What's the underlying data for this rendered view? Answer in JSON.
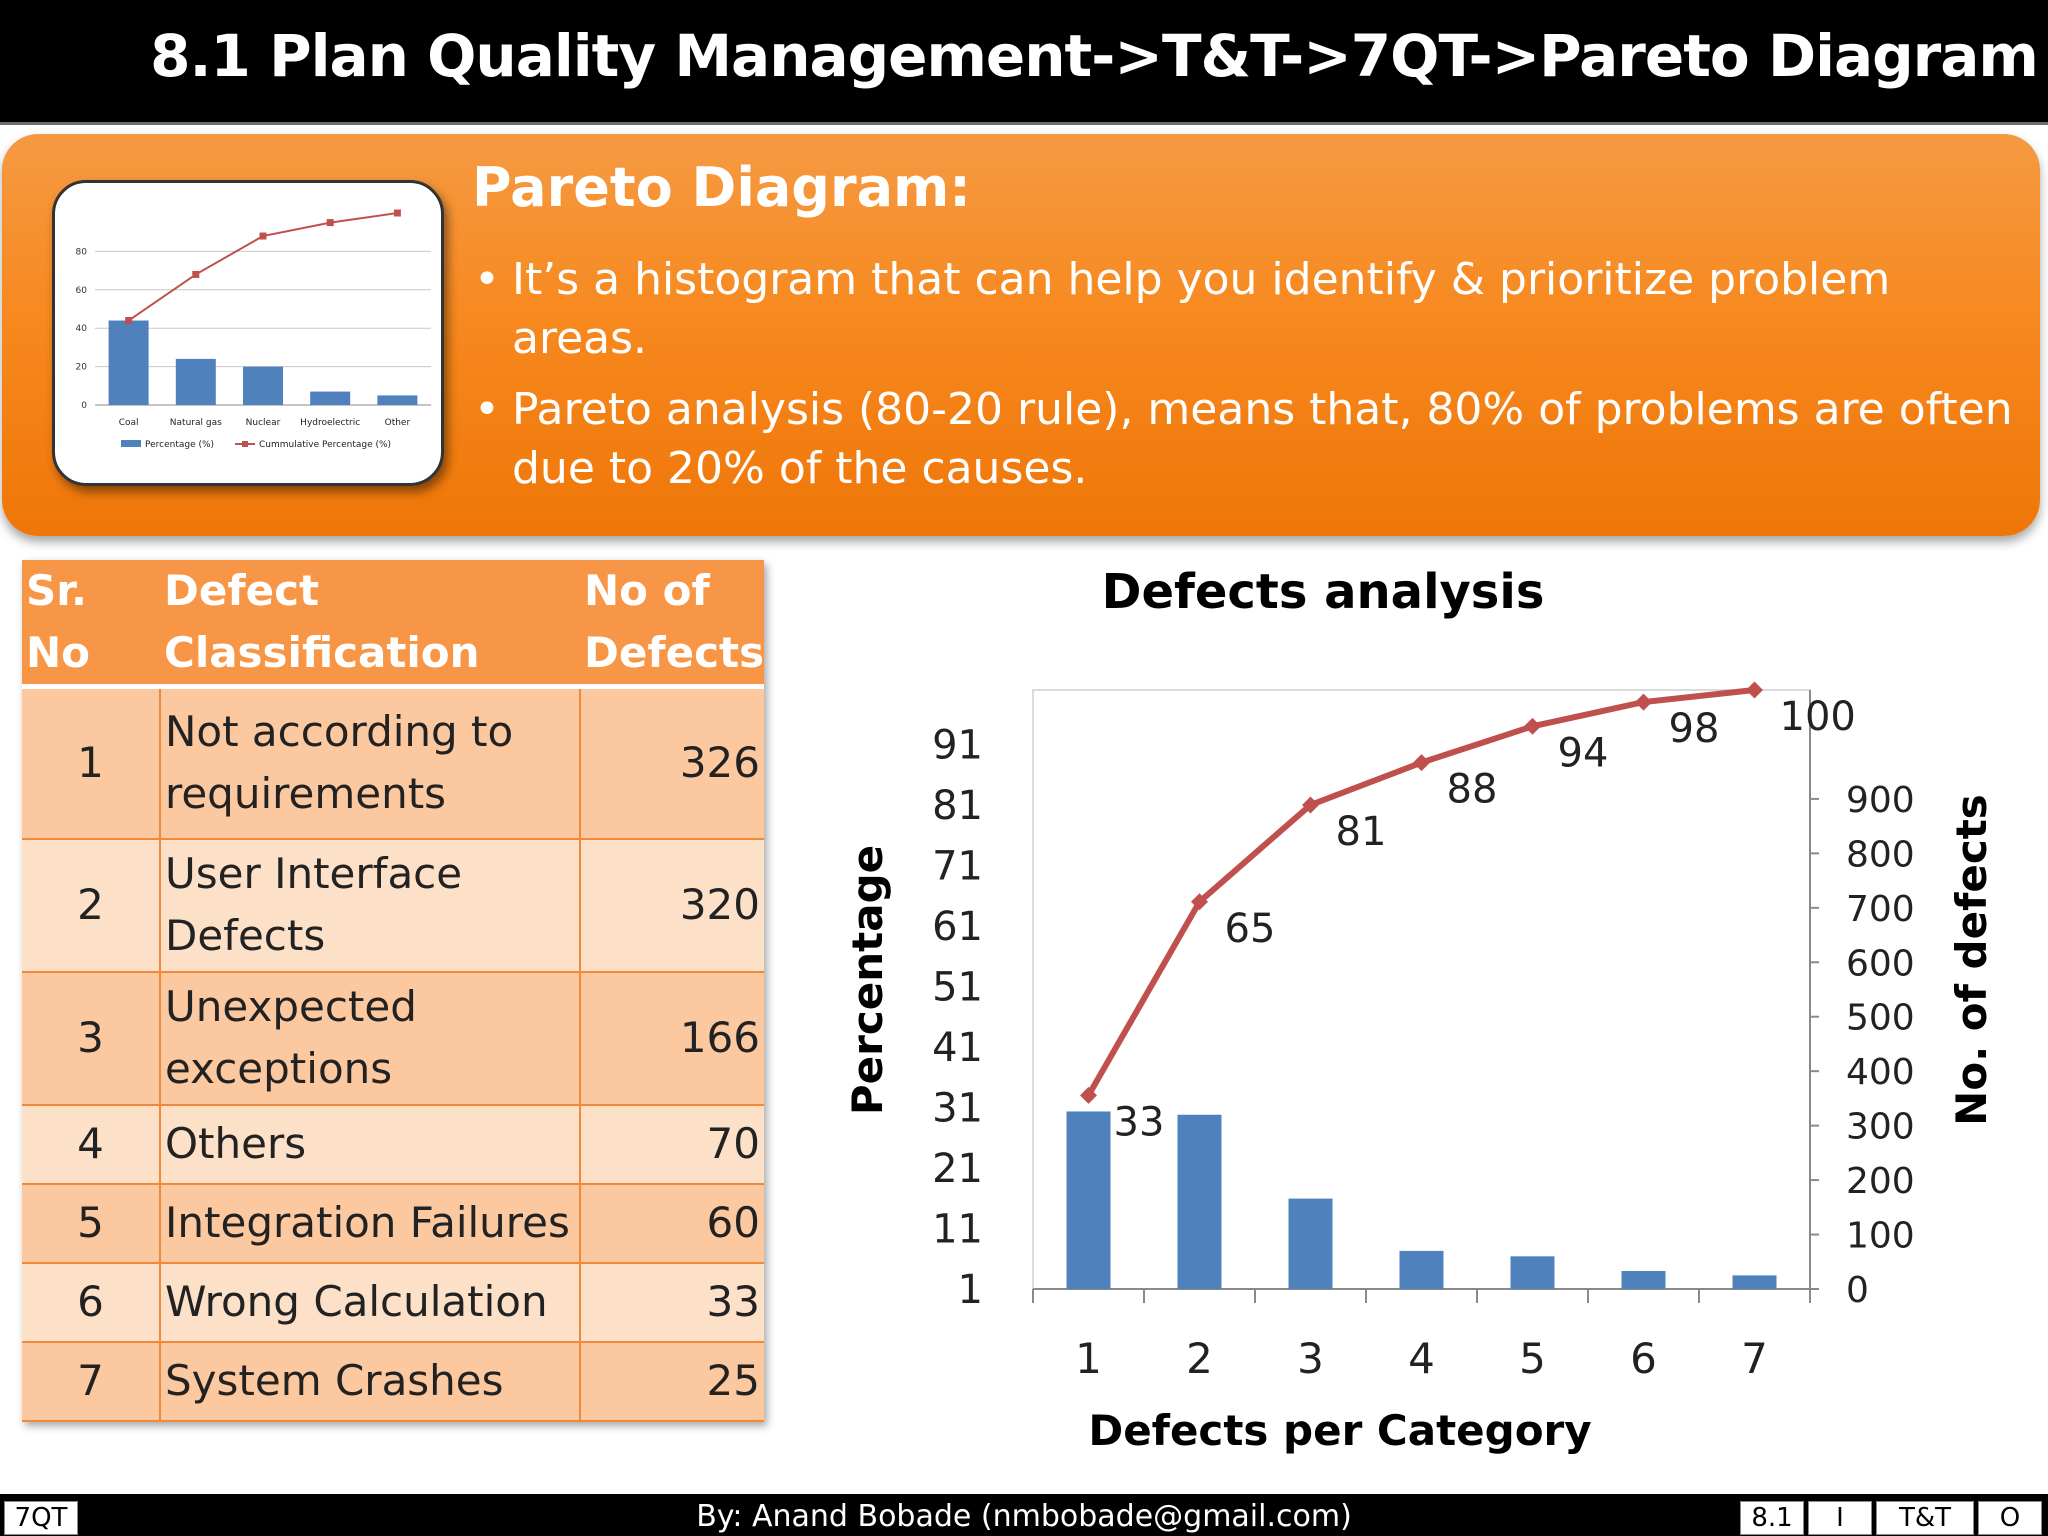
{
  "title": "8.1 Plan Quality Management->T&T->7QT->Pareto Diagram",
  "banner": {
    "heading": "Pareto Diagram:",
    "bullets": [
      "It’s a histogram that can help you identify & prioritize problem areas.",
      "Pareto analysis (80-20 rule), means that, 80% of problems are often due to 20% of the causes."
    ],
    "bullet_glyph": "•"
  },
  "table": {
    "headers": [
      "Sr. No",
      "Defect Classification",
      "No of Defects"
    ],
    "rows": [
      {
        "sr": "1",
        "classification": "Not according to requirements",
        "count": "326"
      },
      {
        "sr": "2",
        "classification": "User Interface Defects",
        "count": "320"
      },
      {
        "sr": "3",
        "classification": "Unexpected exceptions",
        "count": "166"
      },
      {
        "sr": "4",
        "classification": "Others",
        "count": "70"
      },
      {
        "sr": "5",
        "classification": "Integration Failures",
        "count": "60"
      },
      {
        "sr": "6",
        "classification": "Wrong Calculation",
        "count": "33"
      },
      {
        "sr": "7",
        "classification": "System Crashes",
        "count": "25"
      }
    ]
  },
  "chart_data": [
    {
      "type": "bar",
      "title": "",
      "categories": [
        "Coal",
        "Natural gas",
        "Nuclear",
        "Hydroelectric",
        "Other"
      ],
      "series": [
        {
          "name": "Percentage (%)",
          "type": "bar",
          "values": [
            44,
            24,
            20,
            7,
            5
          ],
          "color": "#4f81bd"
        },
        {
          "name": "Cummulative Percentage (%)",
          "type": "line",
          "values": [
            44,
            68,
            88,
            95,
            100
          ],
          "color": "#c0504d"
        }
      ],
      "y_ticks": [
        "0",
        "20",
        "40",
        "60",
        "80"
      ],
      "ylim": [
        0,
        100
      ],
      "grid": true,
      "legend": "bottom"
    },
    {
      "type": "bar",
      "title": "Defects analysis",
      "xlabel": "Defects per Category",
      "ylabel": "Percentage",
      "y2label": "No. of defects",
      "categories": [
        "1",
        "2",
        "3",
        "4",
        "5",
        "6",
        "7"
      ],
      "series": [
        {
          "type": "bar",
          "axis": "secondary",
          "values": [
            326,
            320,
            166,
            70,
            60,
            33,
            25
          ],
          "color": "#4f81bd"
        },
        {
          "type": "line",
          "axis": "primary",
          "values": [
            33,
            65,
            81,
            88,
            94,
            98,
            100
          ],
          "labels": [
            "33",
            "65",
            "81",
            "88",
            "94",
            "98",
            "100"
          ],
          "color": "#c0504d"
        }
      ],
      "y_ticks": [
        "1",
        "11",
        "21",
        "31",
        "41",
        "51",
        "61",
        "71",
        "81",
        "91"
      ],
      "ylim": [
        1,
        100
      ],
      "y2_ticks": [
        "0",
        "100",
        "200",
        "300",
        "400",
        "500",
        "600",
        "700",
        "800",
        "900"
      ],
      "y2lim": [
        0,
        1100
      ],
      "grid": false,
      "legend": "none"
    }
  ],
  "footer": {
    "credit": "By: Anand Bobade (nmbobade@gmail.com)",
    "left_tab": "7QT",
    "nav": [
      "8.1",
      "I",
      "T&T",
      "O"
    ]
  }
}
